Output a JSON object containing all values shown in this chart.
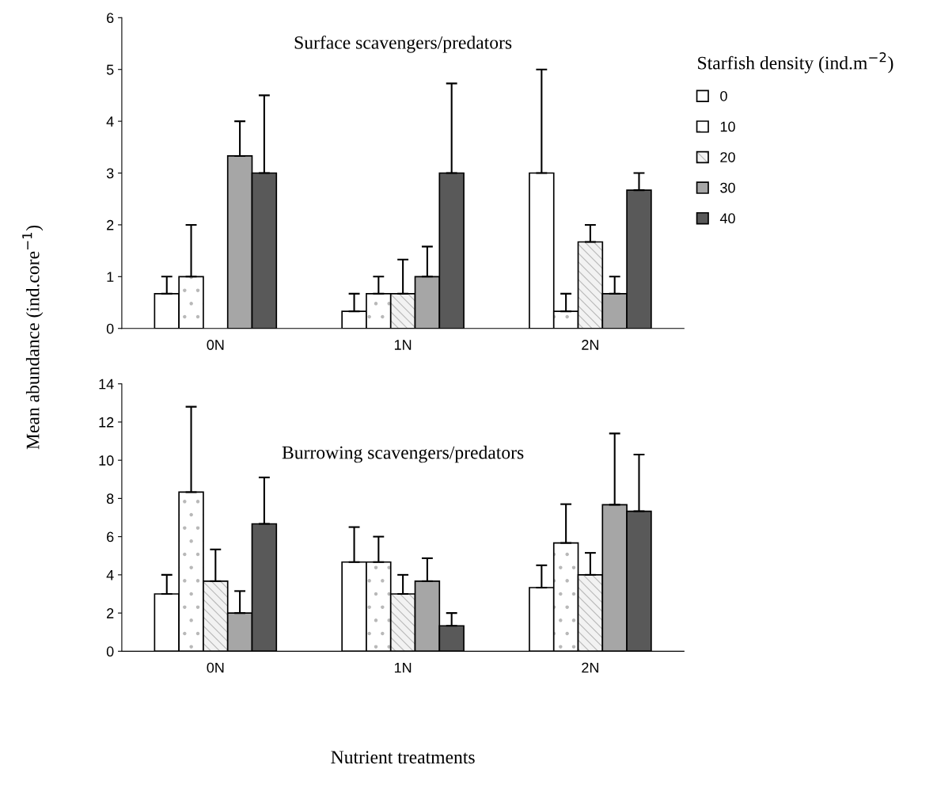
{
  "chart_data": [
    {
      "type": "bar",
      "title": "Surface scavengers/predators",
      "ylabel": "Mean abundance (ind.core$^{−1}$)",
      "legend_title": "Starfish density (ind.m$^{−2}$)",
      "categories": [
        "0N",
        "1N",
        "2N"
      ],
      "ylim": [
        0,
        6
      ],
      "yticks": [
        0,
        1,
        2,
        3,
        4,
        5,
        6
      ],
      "grid": false,
      "legend": "right",
      "series": [
        {
          "name": "0",
          "color": "#ffffff",
          "values": [
            0.67,
            0.33,
            3.0
          ],
          "errors": [
            [
              0.67,
              1.0
            ],
            [
              0.33,
              0.67
            ],
            [
              3.0,
              5.0
            ]
          ]
        },
        {
          "name": "10",
          "color": "#ffffff",
          "values": [
            1.0,
            0.67,
            0.33
          ],
          "errors": [
            [
              1.0,
              2.0
            ],
            [
              0.67,
              1.0
            ],
            [
              0.33,
              0.67
            ]
          ]
        },
        {
          "name": "20",
          "color": "#f2f2f2",
          "values": [
            0,
            0.67,
            1.67
          ],
          "errors": [
            null,
            [
              0.67,
              1.33
            ],
            [
              1.67,
              2.0
            ]
          ]
        },
        {
          "name": "30",
          "color": "#a6a6a6",
          "values": [
            3.33,
            1.0,
            0.67
          ],
          "errors": [
            [
              3.33,
              4.0
            ],
            [
              1.0,
              1.58
            ],
            [
              0.67,
              1.0
            ]
          ]
        },
        {
          "name": "40",
          "color": "#595959",
          "values": [
            3.0,
            3.0,
            2.67
          ],
          "errors": [
            [
              3.0,
              4.5
            ],
            [
              3.0,
              4.73
            ],
            [
              2.67,
              3.0
            ]
          ]
        }
      ]
    },
    {
      "type": "bar",
      "title": "Burrowing scavengers/predators",
      "xlabel": "Nutrient treatments",
      "categories": [
        "0N",
        "1N",
        "2N"
      ],
      "ylim": [
        0,
        14
      ],
      "yticks": [
        0,
        2,
        4,
        6,
        8,
        10,
        12,
        14
      ],
      "grid": false,
      "legend": false,
      "series": [
        {
          "color": "#ffffff",
          "values": [
            3.0,
            4.67,
            3.33
          ],
          "errors": [
            [
              3.0,
              4.0
            ],
            [
              4.67,
              6.5
            ],
            [
              3.33,
              4.5
            ]
          ]
        },
        {
          "color": "#ffffff",
          "values": [
            8.33,
            4.67,
            5.67
          ],
          "errors": [
            [
              8.33,
              12.8
            ],
            [
              4.67,
              6.0
            ],
            [
              5.67,
              7.7
            ]
          ]
        },
        {
          "color": "#f2f2f2",
          "values": [
            3.67,
            3.0,
            4.0
          ],
          "errors": [
            [
              3.67,
              5.33
            ],
            [
              3.0,
              4.0
            ],
            [
              4.0,
              5.15
            ]
          ]
        },
        {
          "color": "#a6a6a6",
          "values": [
            2.0,
            3.67,
            7.67
          ],
          "errors": [
            [
              2.0,
              3.15
            ],
            [
              3.67,
              4.87
            ],
            [
              7.67,
              11.4
            ]
          ]
        },
        {
          "color": "#595959",
          "values": [
            6.67,
            1.33,
            7.33
          ],
          "errors": [
            [
              6.67,
              9.1
            ],
            [
              1.33,
              2.0
            ],
            [
              7.33,
              10.3
            ]
          ]
        }
      ]
    }
  ]
}
